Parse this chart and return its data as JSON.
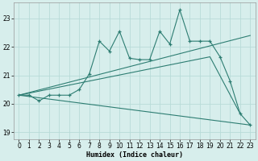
{
  "xlabel": "Humidex (Indice chaleur)",
  "background_color": "#d7eeec",
  "line_color": "#2d7d72",
  "grid_color": "#b8dbd8",
  "xlim": [
    -0.5,
    23.5
  ],
  "ylim": [
    18.75,
    23.55
  ],
  "yticks": [
    19,
    20,
    21,
    22,
    23
  ],
  "xticks": [
    0,
    1,
    2,
    3,
    4,
    5,
    6,
    7,
    8,
    9,
    10,
    11,
    12,
    13,
    14,
    15,
    16,
    17,
    18,
    19,
    20,
    21,
    22,
    23
  ],
  "series1_x": [
    0,
    1,
    2,
    3,
    4,
    5,
    6,
    7,
    8,
    9,
    10,
    11,
    12,
    13,
    14,
    15,
    16,
    17,
    18,
    19,
    20,
    21,
    22,
    23
  ],
  "series1_y": [
    20.3,
    20.3,
    20.1,
    20.3,
    20.3,
    20.3,
    20.5,
    21.05,
    22.2,
    21.85,
    22.55,
    21.6,
    21.55,
    21.55,
    22.55,
    22.1,
    23.3,
    22.2,
    22.2,
    22.2,
    21.65,
    20.8,
    19.65,
    19.25
  ],
  "series2_x": [
    0,
    23
  ],
  "series2_y": [
    20.3,
    22.4
  ],
  "series3_x": [
    0,
    19,
    22
  ],
  "series3_y": [
    20.3,
    21.65,
    19.65
  ],
  "series4_x": [
    0,
    23
  ],
  "series4_y": [
    20.3,
    19.25
  ]
}
